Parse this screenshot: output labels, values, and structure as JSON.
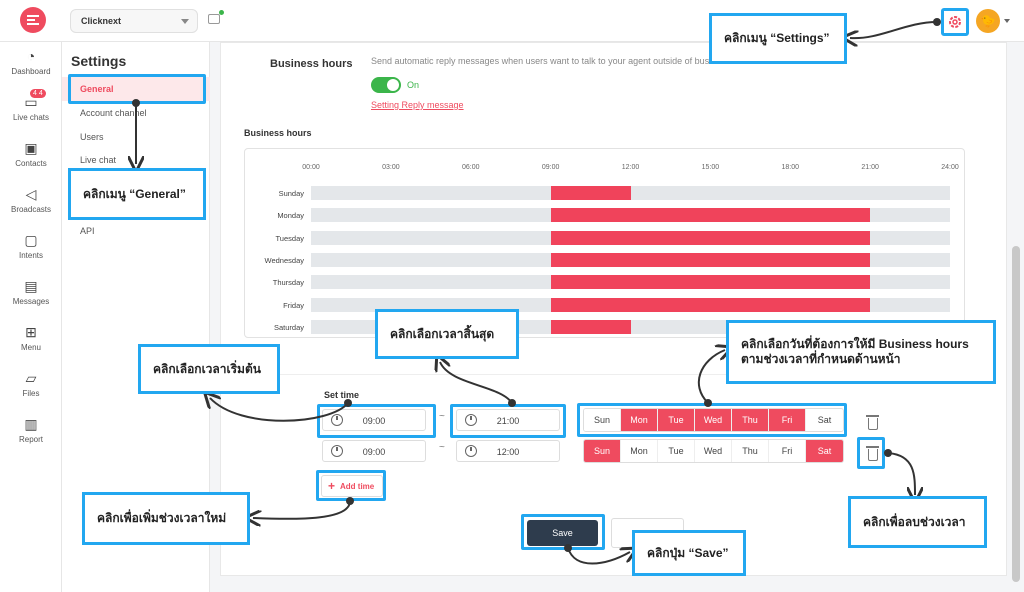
{
  "topbar": {
    "workspace": "Clicknext",
    "avatar_glyph": "🐤"
  },
  "nav": [
    {
      "label": "Dashboard",
      "icon": "dashboard-icon",
      "glyph": "◔"
    },
    {
      "label": "Live chats",
      "icon": "chat-icon",
      "glyph": "▭",
      "badge": "4 4"
    },
    {
      "label": "Contacts",
      "icon": "contact-icon",
      "glyph": "▣"
    },
    {
      "label": "Broadcasts",
      "icon": "megaphone-icon",
      "glyph": "◁"
    },
    {
      "label": "Intents",
      "icon": "intent-icon",
      "glyph": "▢"
    },
    {
      "label": "Messages",
      "icon": "message-icon",
      "glyph": "▤"
    },
    {
      "label": "Menu",
      "icon": "grid-icon",
      "glyph": "⊞"
    },
    {
      "label": "Files",
      "icon": "folder-icon",
      "glyph": "▱"
    },
    {
      "label": "Report",
      "icon": "report-icon",
      "glyph": "▥"
    }
  ],
  "settings": {
    "title": "Settings",
    "menu": [
      "General",
      "Account channel",
      "Users",
      "Live chat",
      "API"
    ]
  },
  "business": {
    "label": "Business hours",
    "description": "Send automatic reply messages when users want to talk to your agent outside of business hours.",
    "toggle_state": "On",
    "reply_link": "Setting Reply message",
    "section_title": "Business hours"
  },
  "chart_data": {
    "type": "bar",
    "ticks": [
      "00:00",
      "03:00",
      "06:00",
      "09:00",
      "12:00",
      "15:00",
      "18:00",
      "21:00",
      "24:00"
    ],
    "x_range_hours": [
      0,
      24
    ],
    "color": "#f0435b",
    "days": [
      {
        "day": "Sunday",
        "start": 9,
        "end": 12
      },
      {
        "day": "Monday",
        "start": 9,
        "end": 21
      },
      {
        "day": "Tuesday",
        "start": 9,
        "end": 21
      },
      {
        "day": "Wednesday",
        "start": 9,
        "end": 21
      },
      {
        "day": "Thursday",
        "start": 9,
        "end": 21
      },
      {
        "day": "Friday",
        "start": 9,
        "end": 21
      },
      {
        "day": "Saturday",
        "start": 9,
        "end": 12
      }
    ]
  },
  "set_time": {
    "title": "Set time",
    "rows": [
      {
        "start": "09:00",
        "end": "21:00",
        "days_on": [
          false,
          true,
          true,
          true,
          true,
          true,
          false
        ]
      },
      {
        "start": "09:00",
        "end": "12:00",
        "days_on": [
          true,
          false,
          false,
          false,
          false,
          false,
          true
        ]
      }
    ],
    "day_names": [
      "Sun",
      "Mon",
      "Tue",
      "Wed",
      "Thu",
      "Fri",
      "Sat"
    ],
    "tilde": "~",
    "add_time": "Add time",
    "save": "Save"
  },
  "annotations": {
    "settings": "คลิกเมนู “Settings”",
    "general": "คลิกเมนู “General”",
    "start_time": "คลิกเลือกเวลาเริ่มต้น",
    "end_time": "คลิกเลือกเวลาสิ้นสุด",
    "days": "คลิกเลือกวันที่ต้องการให้มี Business hours ตามช่วงเวลาที่กำหนดด้านหน้า",
    "add_time": "คลิกเพื่อเพิ่มช่วงเวลาใหม่",
    "delete": "คลิกเพื่อลบช่วงเวลา",
    "save": "คลิกปุ่ม “Save”"
  }
}
